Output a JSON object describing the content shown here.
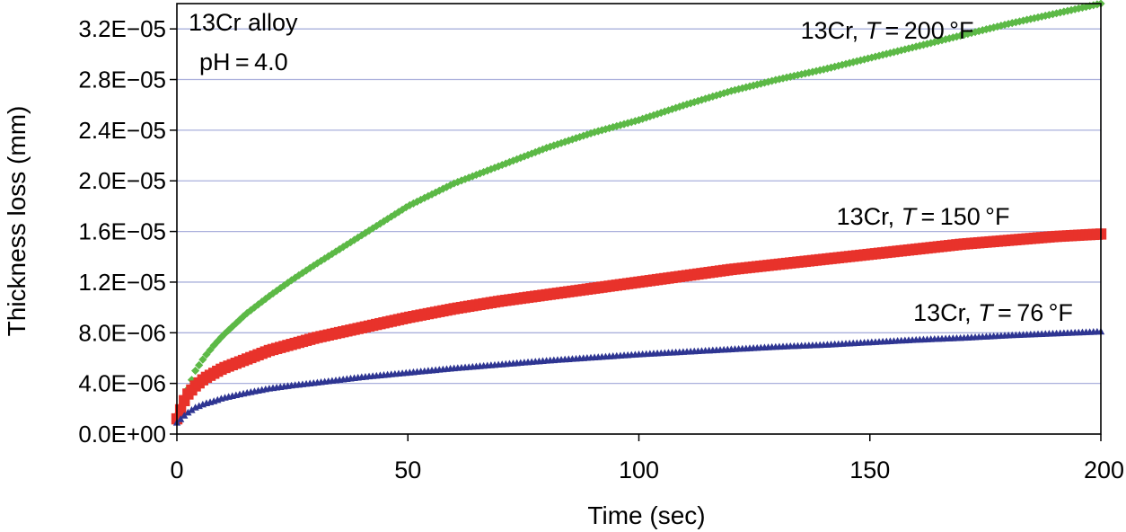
{
  "chart_data": {
    "type": "scatter",
    "title": "",
    "xlabel": "Time (sec)",
    "ylabel": "Thickness loss (mm)",
    "xlim": [
      0,
      200
    ],
    "ylim": [
      0,
      3.4e-05
    ],
    "x_ticks": [
      0,
      50,
      100,
      150,
      200
    ],
    "x_tick_labels": [
      "0",
      "50",
      "100",
      "150",
      "200"
    ],
    "y_ticks": [
      0,
      4e-06,
      8e-06,
      1.2e-05,
      1.6e-05,
      2e-05,
      2.4e-05,
      2.8e-05,
      3.2e-05
    ],
    "y_tick_labels": [
      "0.0E+00",
      "4.0E−06",
      "8.0E−06",
      "1.2E−05",
      "1.6E−05",
      "2.0E−05",
      "2.4E−05",
      "2.8E−05",
      "3.2E−05"
    ],
    "grid": true,
    "annotations": [
      {
        "name": "alloy",
        "lines": [
          "13Cr alloy",
          "pH = 4.0"
        ]
      }
    ],
    "series": [
      {
        "name": "13Cr, T = 200 °F",
        "label_parts": [
          "13Cr, ",
          "T",
          " = 200 °F"
        ],
        "color": "#5cb946",
        "marker": "diamond",
        "x": [
          0,
          2,
          4,
          6,
          8,
          10,
          15,
          20,
          25,
          30,
          40,
          50,
          60,
          70,
          80,
          90,
          100,
          110,
          120,
          130,
          140,
          150,
          160,
          170,
          180,
          190,
          200
        ],
        "y": [
          1.5e-06,
          3.2e-06,
          5e-06,
          6.1e-06,
          7e-06,
          7.8e-06,
          9.5e-06,
          1.09e-05,
          1.22e-05,
          1.34e-05,
          1.57e-05,
          1.8e-05,
          1.98e-05,
          2.12e-05,
          2.26e-05,
          2.38e-05,
          2.48e-05,
          2.6e-05,
          2.71e-05,
          2.8e-05,
          2.88e-05,
          2.97e-05,
          3.06e-05,
          3.15e-05,
          3.24e-05,
          3.32e-05,
          3.4e-05
        ]
      },
      {
        "name": "13Cr, T = 150 °F",
        "label_parts": [
          "13Cr, ",
          "T",
          " = 150 °F"
        ],
        "color": "#e8322b",
        "marker": "square",
        "x": [
          0,
          2,
          4,
          6,
          8,
          10,
          15,
          20,
          25,
          30,
          40,
          50,
          60,
          70,
          80,
          90,
          100,
          110,
          120,
          130,
          140,
          150,
          160,
          170,
          180,
          190,
          200
        ],
        "y": [
          1.2e-06,
          3e-06,
          3.8e-06,
          4.4e-06,
          4.8e-06,
          5.2e-06,
          5.9e-06,
          6.6e-06,
          7.1e-06,
          7.6e-06,
          8.4e-06,
          9.2e-06,
          9.9e-06,
          1.05e-05,
          1.1e-05,
          1.15e-05,
          1.2e-05,
          1.25e-05,
          1.3e-05,
          1.34e-05,
          1.38e-05,
          1.42e-05,
          1.46e-05,
          1.5e-05,
          1.53e-05,
          1.56e-05,
          1.58e-05
        ]
      },
      {
        "name": "13Cr, T = 76 °F",
        "label_parts": [
          "13Cr, ",
          "T",
          " = 76 °F"
        ],
        "color": "#2e3592",
        "marker": "triangle",
        "x": [
          0,
          2,
          4,
          6,
          8,
          10,
          15,
          20,
          25,
          30,
          40,
          50,
          60,
          70,
          80,
          90,
          100,
          110,
          120,
          130,
          140,
          150,
          160,
          170,
          180,
          190,
          200
        ],
        "y": [
          9e-07,
          1.6e-06,
          2.1e-06,
          2.4e-06,
          2.6e-06,
          2.85e-06,
          3.25e-06,
          3.6e-06,
          3.85e-06,
          4.05e-06,
          4.5e-06,
          4.85e-06,
          5.2e-06,
          5.5e-06,
          5.8e-06,
          6.05e-06,
          6.3e-06,
          6.5e-06,
          6.7e-06,
          6.9e-06,
          7.05e-06,
          7.25e-06,
          7.45e-06,
          7.6e-06,
          7.8e-06,
          7.95e-06,
          8.1e-06
        ]
      }
    ]
  }
}
